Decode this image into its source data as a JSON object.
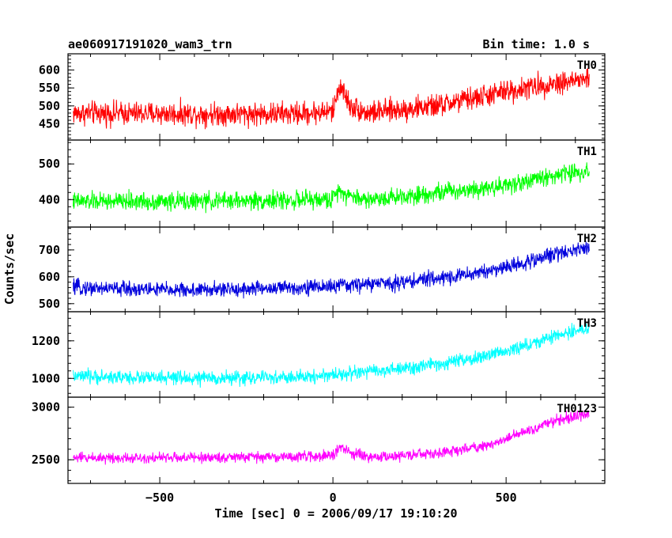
{
  "header": {
    "left_title": "ae060917191020_wam3_trn",
    "right_title": "Bin time: 1.0 s"
  },
  "chart_data": {
    "type": "line",
    "title": "ae060917191020_wam3_trn",
    "subtitle": "Bin time: 1.0 s",
    "xlabel": "Time [sec] 0 = 2006/09/17 19:10:20",
    "ylabel": "Counts/sec",
    "xlim": [
      -765,
      785
    ],
    "x_ticks": [
      -500,
      0,
      500
    ],
    "x_tick_labels": [
      "−500",
      "0",
      "500"
    ],
    "bin_time_s": 1.0,
    "grid": false,
    "legend": "none",
    "panels": [
      {
        "name": "TH0",
        "color": "#ff0000",
        "ylim": [
          405,
          645
        ],
        "y_ticks": [
          450,
          500,
          550,
          600
        ],
        "y_tick_labels": [
          "450",
          "500",
          "550",
          "600"
        ],
        "x_range": [
          -750,
          740
        ],
        "trend": [
          [
            -750,
            480
          ],
          [
            -400,
            478
          ],
          [
            -100,
            478
          ],
          [
            0,
            485
          ],
          [
            20,
            560
          ],
          [
            50,
            500
          ],
          [
            100,
            480
          ],
          [
            300,
            500
          ],
          [
            500,
            540
          ],
          [
            650,
            565
          ],
          [
            740,
            575
          ]
        ],
        "noise_amplitude": 48
      },
      {
        "name": "TH1",
        "color": "#00ff00",
        "ylim": [
          323,
          567
        ],
        "y_ticks": [
          400,
          500
        ],
        "y_tick_labels": [
          "400",
          "500"
        ],
        "x_range": [
          -750,
          740
        ],
        "trend": [
          [
            -750,
            395
          ],
          [
            -400,
            395
          ],
          [
            0,
            400
          ],
          [
            15,
            430
          ],
          [
            50,
            410
          ],
          [
            100,
            400
          ],
          [
            300,
            420
          ],
          [
            500,
            440
          ],
          [
            650,
            470
          ],
          [
            740,
            480
          ]
        ],
        "noise_amplitude": 38
      },
      {
        "name": "TH2",
        "color": "#0000dd",
        "ylim": [
          470,
          785
        ],
        "y_ticks": [
          500,
          600,
          700
        ],
        "y_tick_labels": [
          "500",
          "600",
          "700"
        ],
        "x_range": [
          -750,
          740
        ],
        "trend": [
          [
            -750,
            560
          ],
          [
            -400,
            550
          ],
          [
            -100,
            560
          ],
          [
            0,
            565
          ],
          [
            200,
            580
          ],
          [
            400,
            610
          ],
          [
            550,
            650
          ],
          [
            650,
            690
          ],
          [
            740,
            710
          ]
        ],
        "noise_amplitude": 42
      },
      {
        "name": "TH3",
        "color": "#00ffff",
        "ylim": [
          900,
          1355
        ],
        "y_ticks": [
          1000,
          1200
        ],
        "y_tick_labels": [
          "1000",
          "1200"
        ],
        "x_range": [
          -750,
          740
        ],
        "trend": [
          [
            -750,
            1010
          ],
          [
            -400,
            1000
          ],
          [
            -100,
            1005
          ],
          [
            0,
            1020
          ],
          [
            200,
            1050
          ],
          [
            400,
            1100
          ],
          [
            550,
            1170
          ],
          [
            650,
            1230
          ],
          [
            740,
            1270
          ]
        ],
        "noise_amplitude": 55
      },
      {
        "name": "TH0123",
        "color": "#ff00ff",
        "ylim": [
          2275,
          3095
        ],
        "y_ticks": [
          2500,
          3000
        ],
        "y_tick_labels": [
          "2500",
          "3000"
        ],
        "x_range": [
          -750,
          740
        ],
        "trend": [
          [
            -750,
            2520
          ],
          [
            -400,
            2520
          ],
          [
            -100,
            2530
          ],
          [
            0,
            2540
          ],
          [
            20,
            2620
          ],
          [
            50,
            2570
          ],
          [
            100,
            2520
          ],
          [
            300,
            2560
          ],
          [
            450,
            2640
          ],
          [
            550,
            2760
          ],
          [
            650,
            2880
          ],
          [
            740,
            2940
          ]
        ],
        "noise_amplitude": 75
      }
    ]
  }
}
